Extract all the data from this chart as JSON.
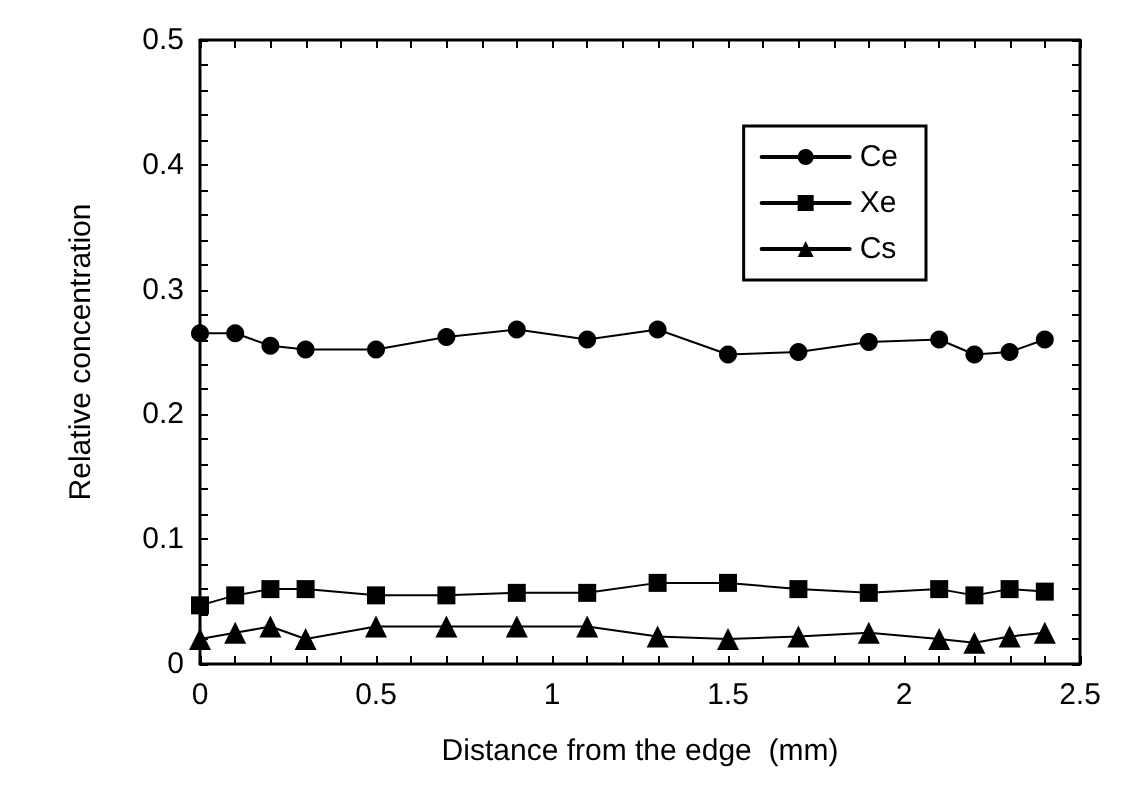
{
  "chart_data": {
    "type": "line",
    "xlabel": "Distance from the edge  (mm)",
    "ylabel": "Relative concentration",
    "x": [
      0,
      0.1,
      0.2,
      0.3,
      0.5,
      0.7,
      0.9,
      1.1,
      1.3,
      1.5,
      1.7,
      1.9,
      2.1,
      2.2,
      2.3,
      2.4
    ],
    "series": [
      {
        "name": "Ce",
        "color": "#000000",
        "marker": "circle",
        "values": [
          0.265,
          0.265,
          0.255,
          0.252,
          0.252,
          0.262,
          0.268,
          0.26,
          0.268,
          0.248,
          0.25,
          0.258,
          0.26,
          0.248,
          0.25,
          0.26
        ]
      },
      {
        "name": "Xe",
        "color": "#000000",
        "marker": "square",
        "values": [
          0.047,
          0.055,
          0.06,
          0.06,
          0.055,
          0.055,
          0.057,
          0.057,
          0.065,
          0.065,
          0.06,
          0.057,
          0.06,
          0.055,
          0.06,
          0.058
        ]
      },
      {
        "name": "Cs",
        "color": "#000000",
        "marker": "triangle",
        "values": [
          0.02,
          0.025,
          0.03,
          0.02,
          0.03,
          0.03,
          0.03,
          0.03,
          0.022,
          0.02,
          0.022,
          0.025,
          0.02,
          0.017,
          0.022,
          0.025
        ]
      }
    ],
    "xlim": [
      0,
      2.5
    ],
    "xticks": [
      0,
      0.5,
      1,
      1.5,
      2,
      2.5
    ],
    "ylim": [
      0,
      0.5
    ],
    "yticks": [
      0,
      0.1,
      0.2,
      0.3,
      0.4,
      0.5
    ],
    "grid": false,
    "legend": "top right",
    "line_style": "solid"
  }
}
